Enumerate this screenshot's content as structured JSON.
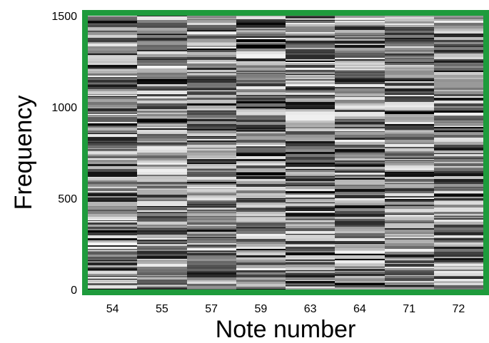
{
  "chart_data": {
    "type": "heatmap",
    "title": "",
    "xlabel": "Note number",
    "ylabel": "Frequency",
    "categories": [
      "54",
      "55",
      "57",
      "59",
      "63",
      "64",
      "71",
      "72"
    ],
    "ylim": [
      0,
      1500
    ],
    "yticks": [
      0,
      500,
      1000,
      1500
    ],
    "colormap": "gray",
    "grid": false,
    "legend": "none",
    "colors": {
      "frame": "#1e9b3c",
      "background": "#ffffff",
      "text": "#000000"
    }
  }
}
